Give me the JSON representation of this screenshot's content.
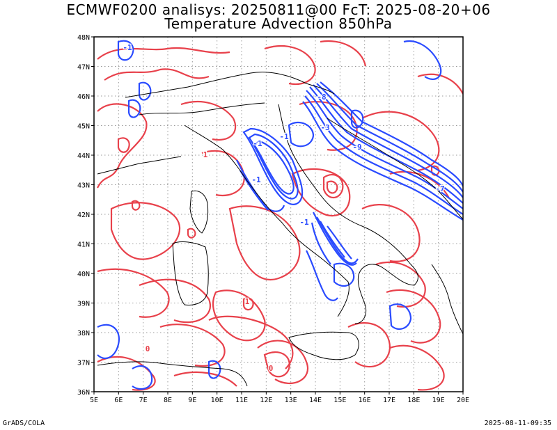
{
  "title": {
    "line1": "ECMWF0200 analisys: 20250811@00 FcT: 2025-08-20+06",
    "line2": "Temperature Advection 850hPa"
  },
  "footer": {
    "left": "GrADS/COLA",
    "right": "2025-08-11-09:35"
  },
  "map": {
    "lon_labels": [
      "5E",
      "6E",
      "7E",
      "8E",
      "9E",
      "10E",
      "11E",
      "12E",
      "13E",
      "14E",
      "15E",
      "16E",
      "17E",
      "18E",
      "19E",
      "20E"
    ],
    "lat_labels": [
      "48N",
      "47N",
      "46N",
      "45N",
      "44N",
      "43N",
      "42N",
      "41N",
      "40N",
      "39N",
      "38N",
      "37N",
      "36N"
    ],
    "lon_range": [
      5,
      20
    ],
    "lat_range": [
      36,
      48
    ],
    "grid": "dotted",
    "colors": {
      "warm_contour": "#e8414b",
      "cold_contour": "#2a4bff",
      "coastline": "#000000",
      "grid": "#9a9a9a"
    },
    "contour_labels": [
      {
        "text": "-1",
        "color": "#2a4bff"
      },
      {
        "text": "-1",
        "color": "#2a4bff"
      },
      {
        "text": "-1",
        "color": "#2a4bff"
      },
      {
        "text": "-1",
        "color": "#2a4bff"
      },
      {
        "text": "-1",
        "color": "#2a4bff"
      },
      {
        "text": "-8",
        "color": "#2a4bff"
      },
      {
        "text": "-9",
        "color": "#2a4bff"
      },
      {
        "text": "-3",
        "color": "#2a4bff"
      },
      {
        "text": "-7",
        "color": "#2a4bff"
      },
      {
        "text": "1",
        "color": "#e8414b"
      },
      {
        "text": "1",
        "color": "#e8414b"
      },
      {
        "text": "0",
        "color": "#e8414b"
      },
      {
        "text": "0",
        "color": "#e8414b"
      }
    ]
  }
}
